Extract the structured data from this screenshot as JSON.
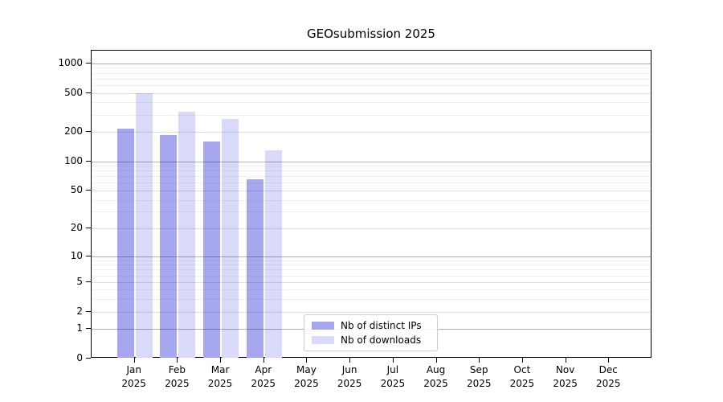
{
  "title": "GEOsubmission 2025",
  "year": "2025",
  "colors": {
    "distinct_ips": "#a7a7f0",
    "downloads": "#d9d9f9",
    "grid_major": "rgba(0,0,0,0.30)",
    "grid_labeled": "rgba(0,0,0,0.13)",
    "grid_minor": "rgba(0,0,0,0.06)",
    "axis": "#000000"
  },
  "chart_data": {
    "type": "bar",
    "title": "GEOsubmission 2025",
    "categories": [
      "Jan 2025",
      "Feb 2025",
      "Mar 2025",
      "Apr 2025",
      "May 2025",
      "Jun 2025",
      "Jul 2025",
      "Aug 2025",
      "Sep 2025",
      "Oct 2025",
      "Nov 2025",
      "Dec 2025"
    ],
    "series": [
      {
        "name": "Nb of distinct IPs",
        "color": "#a7a7f0",
        "values": [
          215,
          185,
          160,
          65,
          0,
          0,
          0,
          0,
          0,
          0,
          0,
          0
        ]
      },
      {
        "name": "Nb of downloads",
        "color": "#d9d9f9",
        "values": [
          500,
          320,
          270,
          130,
          0,
          0,
          0,
          0,
          0,
          0,
          0,
          0
        ]
      }
    ],
    "xlabel": "",
    "ylabel": "",
    "yscale": "log(value+1)",
    "yticks": [
      0,
      1,
      2,
      5,
      10,
      20,
      50,
      100,
      200,
      500,
      1000
    ],
    "ylim": [
      0,
      1345
    ],
    "grid": "major + minor, drawn over bars",
    "legend_position": "inside lower-center"
  }
}
